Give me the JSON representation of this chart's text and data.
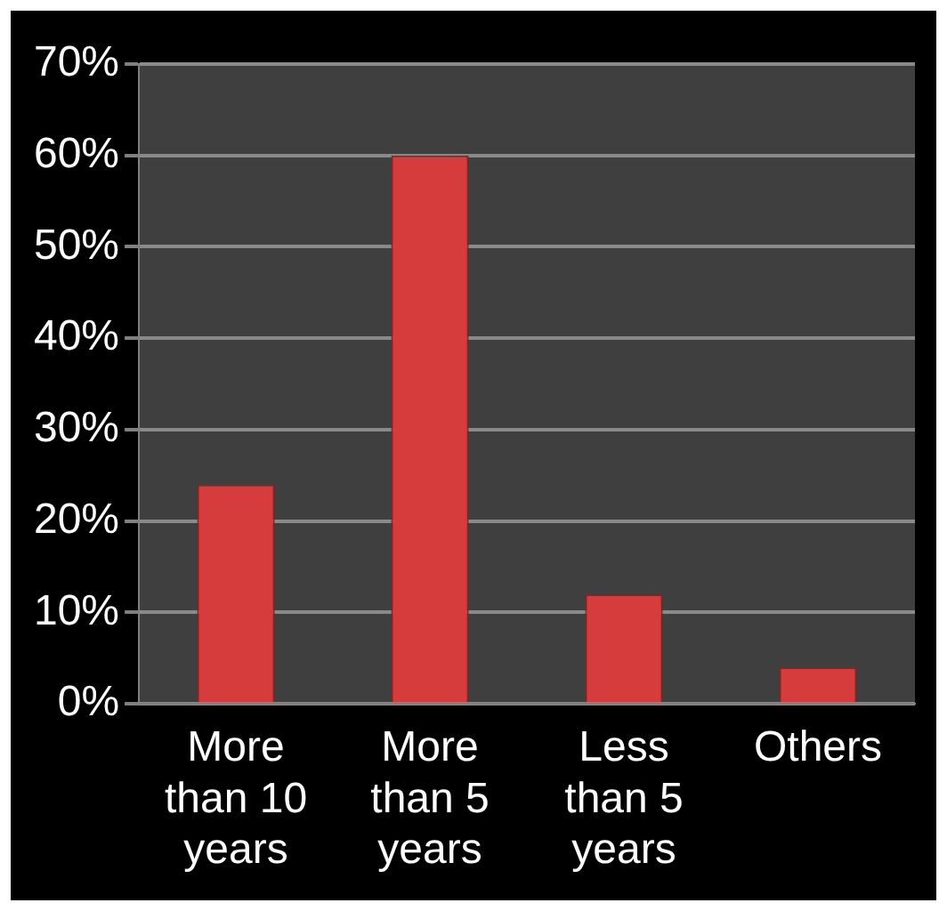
{
  "chart_data": {
    "type": "bar",
    "categories": [
      "More than 10 years",
      "More than 5 years",
      "Less than 5 years",
      "Others"
    ],
    "values": [
      24,
      60,
      12,
      4
    ],
    "color": "#d63c3c",
    "ylim": [
      0,
      70
    ],
    "yticks": [
      {
        "value": 0,
        "label": "0%"
      },
      {
        "value": 10,
        "label": "10%"
      },
      {
        "value": 20,
        "label": "20%"
      },
      {
        "value": 30,
        "label": "30%"
      },
      {
        "value": 40,
        "label": "40%"
      },
      {
        "value": 50,
        "label": "50%"
      },
      {
        "value": 60,
        "label": "60%"
      },
      {
        "value": 70,
        "label": "70%"
      }
    ],
    "grid": "y"
  }
}
